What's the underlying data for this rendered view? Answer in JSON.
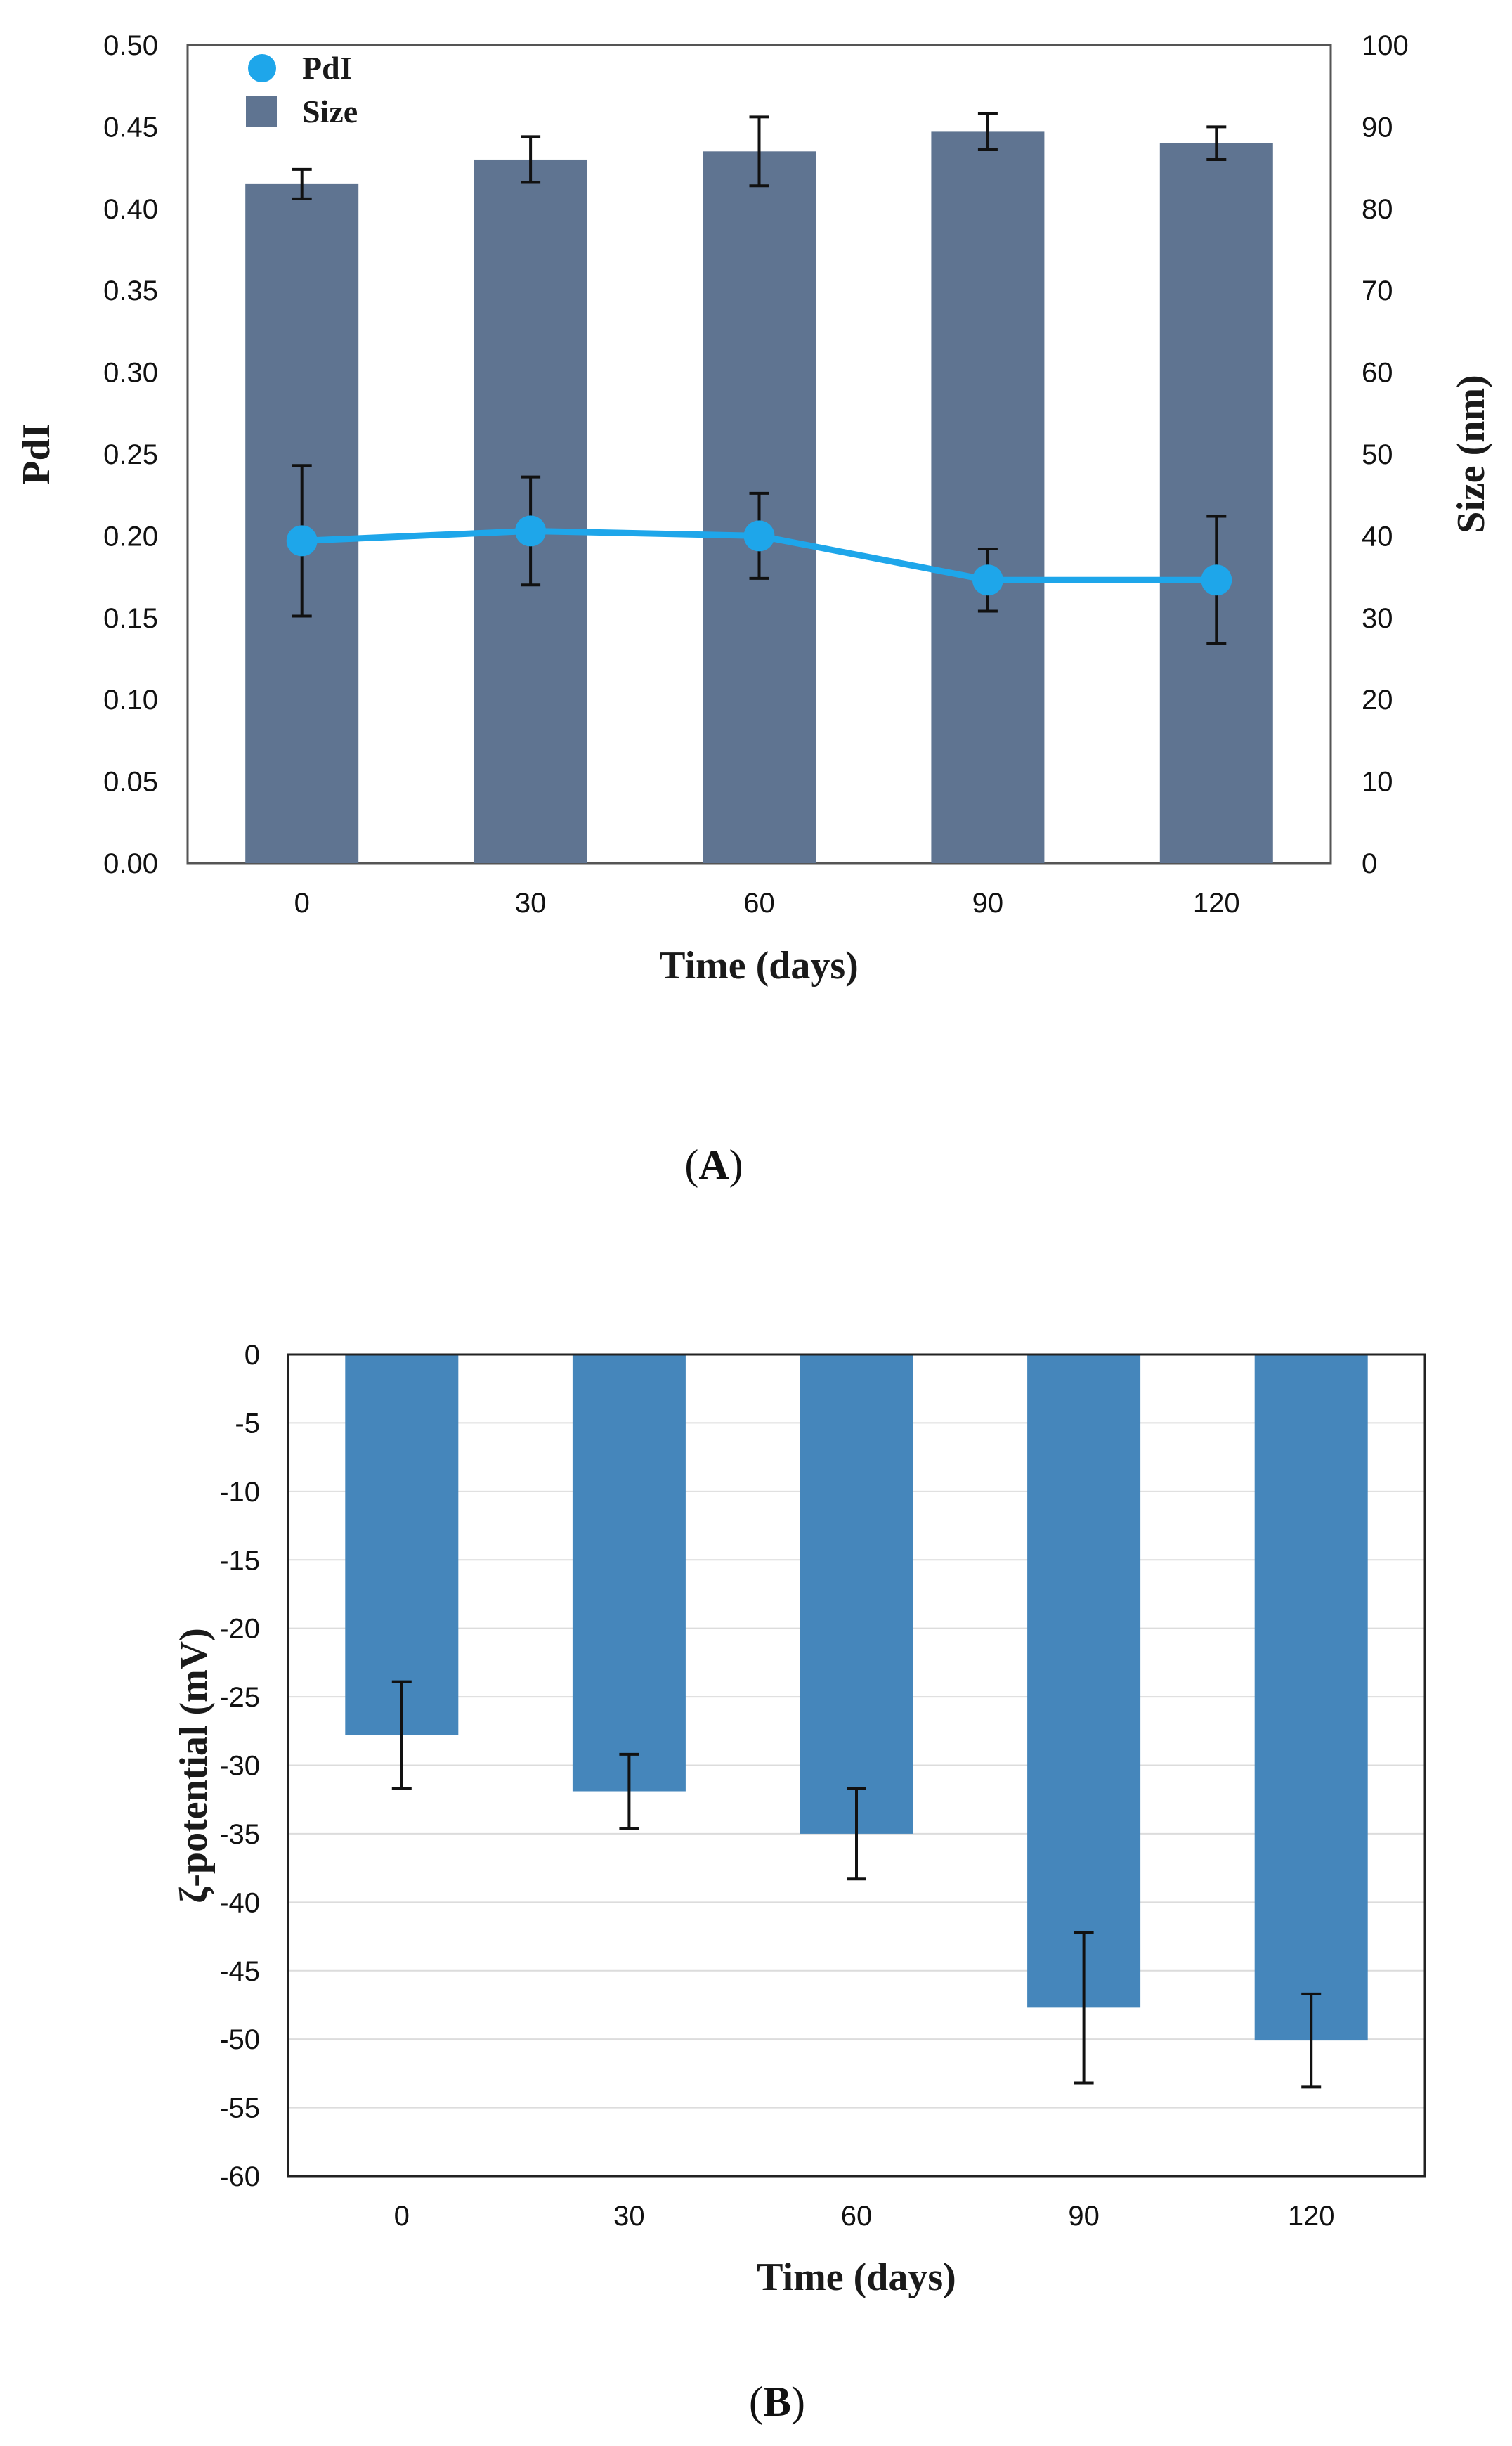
{
  "chart_data": [
    {
      "panel": "A",
      "type": "bar",
      "xlabel": "Time (days)",
      "ylabel": "PdI",
      "ylabel_right": "Size (nm)",
      "categories": [
        "0",
        "30",
        "60",
        "90",
        "120"
      ],
      "ylim": [
        0,
        0.5
      ],
      "ylim_right": [
        0,
        100
      ],
      "yticks": [
        "0.00",
        "0.05",
        "0.10",
        "0.15",
        "0.20",
        "0.25",
        "0.30",
        "0.35",
        "0.40",
        "0.45",
        "0.50"
      ],
      "yticks_right": [
        "0",
        "10",
        "20",
        "30",
        "40",
        "50",
        "60",
        "70",
        "80",
        "90",
        "100"
      ],
      "legend_position": "top-left",
      "series": [
        {
          "name": "Size",
          "type": "bar",
          "axis": "right",
          "color": "#5f7491",
          "values": [
            83,
            86,
            87,
            89.4,
            88
          ],
          "errors": [
            1.8,
            2.8,
            4.2,
            2.2,
            2
          ]
        },
        {
          "name": "PdI",
          "type": "line",
          "axis": "left",
          "color": "#1ea6ea",
          "values": [
            0.197,
            0.203,
            0.2,
            0.173,
            0.173
          ],
          "errors": [
            0.046,
            0.033,
            0.026,
            0.019,
            0.039
          ]
        }
      ]
    },
    {
      "panel": "B",
      "type": "bar",
      "xlabel": "Time (days)",
      "ylabel": "ζ-potential (mV)",
      "categories": [
        "0",
        "30",
        "60",
        "90",
        "120"
      ],
      "ylim": [
        -60,
        0
      ],
      "yticks": [
        "0",
        "-5",
        "-10",
        "-15",
        "-20",
        "-25",
        "-30",
        "-35",
        "-40",
        "-45",
        "-50",
        "-55",
        "-60"
      ],
      "grid": true,
      "series": [
        {
          "name": "ζ-potential",
          "type": "bar",
          "color": "#4586bb",
          "values": [
            -27.8,
            -31.9,
            -35,
            -47.7,
            -50.1
          ],
          "errors": [
            3.9,
            2.7,
            3.3,
            5.5,
            3.4
          ]
        }
      ]
    }
  ],
  "labels": {
    "panel_a_open": "(",
    "panel_a": "A",
    "panel_a_close": ")",
    "panel_b_open": "(",
    "panel_b": "B",
    "panel_b_close": ")"
  }
}
